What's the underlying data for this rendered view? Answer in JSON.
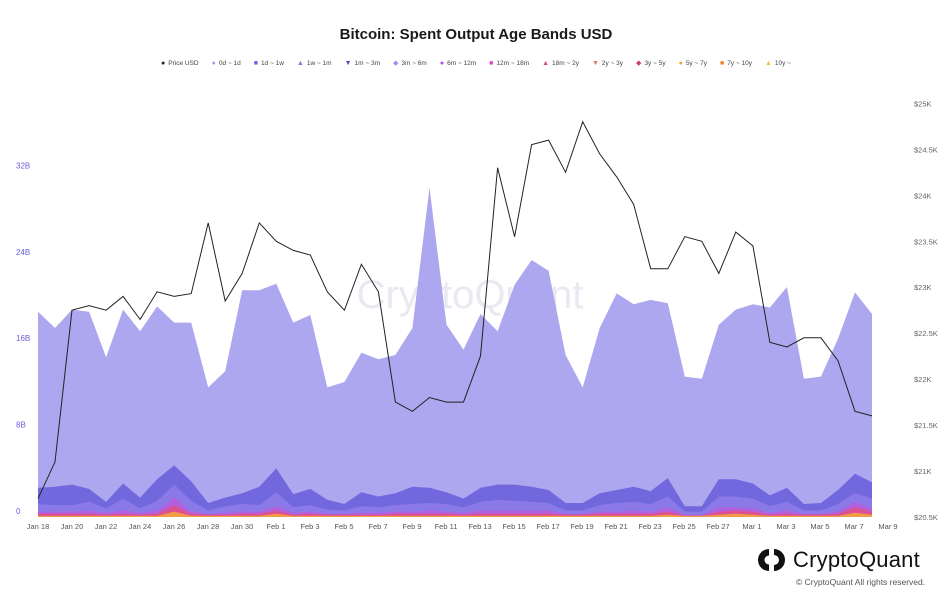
{
  "chart_data": {
    "type": "area",
    "title": "Bitcoin: Spent Output Age Bands USD",
    "legend": [
      {
        "label": "Price USD",
        "color": "#222222",
        "marker": "●"
      },
      {
        "label": "0d ~ 1d",
        "color": "#9e9ef0",
        "marker": "●"
      },
      {
        "label": "1d ~ 1w",
        "color": "#6c5ce7",
        "marker": "■"
      },
      {
        "label": "1w ~ 1m",
        "color": "#8f6fe6",
        "marker": "▲"
      },
      {
        "label": "1m ~ 3m",
        "color": "#5a47d6",
        "marker": "▼"
      },
      {
        "label": "3m ~ 6m",
        "color": "#a989f0",
        "marker": "◆"
      },
      {
        "label": "6m ~ 12m",
        "color": "#b14ae0",
        "marker": "●"
      },
      {
        "label": "12m ~ 18m",
        "color": "#d64fc8",
        "marker": "■"
      },
      {
        "label": "18m ~ 2y",
        "color": "#e0467a",
        "marker": "▲"
      },
      {
        "label": "2y ~ 3y",
        "color": "#f06a5a",
        "marker": "▼"
      },
      {
        "label": "3y ~ 5y",
        "color": "#c7407a",
        "marker": "◆"
      },
      {
        "label": "5y ~ 7y",
        "color": "#f4a340",
        "marker": "●"
      },
      {
        "label": "7y ~ 10y",
        "color": "#f08030",
        "marker": "■"
      },
      {
        "label": "10y ~",
        "color": "#f5c040",
        "marker": "▲"
      }
    ],
    "x_labels": [
      "Jan 18",
      "Jan 20",
      "Jan 22",
      "Jan 24",
      "Jan 26",
      "Jan 28",
      "Jan 30",
      "Feb 1",
      "Feb 3",
      "Feb 5",
      "Feb 7",
      "Feb 9",
      "Feb 11",
      "Feb 13",
      "Feb 15",
      "Feb 17",
      "Feb 19",
      "Feb 21",
      "Feb 23",
      "Feb 25",
      "Feb 27",
      "Mar 1",
      "Mar 3",
      "Mar 5",
      "Mar 7",
      "Mar 9"
    ],
    "y_left_ticks": [
      {
        "label": "0",
        "value": 0
      },
      {
        "label": "8B",
        "value": 8
      },
      {
        "label": "16B",
        "value": 16
      },
      {
        "label": "24B",
        "value": 24
      },
      {
        "label": "32B",
        "value": 32
      }
    ],
    "y_right_ticks": [
      {
        "label": "$20.5K",
        "value": 20.5
      },
      {
        "label": "$21K",
        "value": 21
      },
      {
        "label": "$21.5K",
        "value": 21.5
      },
      {
        "label": "$22K",
        "value": 22
      },
      {
        "label": "$22.5K",
        "value": 22.5
      },
      {
        "label": "$23K",
        "value": 23
      },
      {
        "label": "$23.5K",
        "value": 23.5
      },
      {
        "label": "$24K",
        "value": 24
      },
      {
        "label": "$24.5K",
        "value": 24.5
      },
      {
        "label": "$25K",
        "value": 25
      }
    ],
    "y_left_range": [
      0,
      40
    ],
    "y_right_range": [
      20.5,
      25.2
    ],
    "watermark": "CryptoQuant",
    "series": [
      {
        "name": "0d ~ 1d",
        "unit": "B USD",
        "color": "#a5a0ee",
        "values": [
          19,
          17.5,
          19.2,
          19,
          14.8,
          19.2,
          17.2,
          19.5,
          18,
          18,
          12,
          13.5,
          21,
          21,
          21.6,
          18,
          18.7,
          12,
          12.5,
          15.2,
          14.6,
          15,
          17.5,
          30.5,
          17.8,
          15.5,
          18.8,
          17.2,
          21.5,
          23.8,
          22.8,
          15,
          12,
          17.5,
          20.7,
          19.7,
          20.1,
          19.8,
          13,
          12.8,
          17.8,
          19.2,
          19.7,
          19.4,
          21.3,
          12.8,
          13,
          16.5,
          20.8,
          18.8
        ]
      },
      {
        "name": "1d ~ 1w",
        "unit": "B USD",
        "color": "#6c63dc",
        "values": [
          2.7,
          2.8,
          3,
          2.6,
          1.4,
          3.1,
          1.8,
          3.5,
          4.8,
          3.3,
          1.3,
          1.8,
          2.2,
          2.8,
          4.5,
          2.1,
          2.6,
          1.6,
          1.2,
          2.3,
          1.9,
          2.2,
          2.8,
          2.7,
          2.3,
          1.7,
          2.7,
          3,
          3,
          2.8,
          2.5,
          1.3,
          1.3,
          2.2,
          2.5,
          2.8,
          2.4,
          3.6,
          1,
          1,
          3.5,
          3.5,
          3.1,
          2,
          2.7,
          1.2,
          1.3,
          2.5,
          4,
          3.2
        ]
      },
      {
        "name": "1w ~ 1m",
        "unit": "B USD",
        "color": "#8e7be8",
        "values": [
          1.2,
          1.1,
          1.1,
          1.4,
          0.8,
          1.7,
          0.8,
          1.5,
          3,
          1.5,
          0.6,
          1,
          1.2,
          1.1,
          2.3,
          0.9,
          1.1,
          0.7,
          0.6,
          1,
          0.9,
          1.1,
          1.2,
          1.3,
          1.2,
          0.9,
          1.4,
          1.6,
          1.5,
          1.4,
          1.3,
          0.6,
          0.6,
          1.1,
          1.3,
          1.4,
          1.2,
          1.9,
          0.5,
          0.5,
          1.9,
          1.9,
          1.7,
          1,
          1.4,
          0.6,
          0.6,
          1.2,
          2.2,
          1.7
        ]
      },
      {
        "name": "1m ~ 3m",
        "unit": "B USD",
        "color": "#b560dc",
        "values": [
          0.5,
          0.5,
          0.5,
          0.6,
          0.4,
          0.6,
          0.4,
          0.6,
          1.8,
          0.5,
          0.3,
          0.4,
          0.5,
          0.5,
          1,
          0.4,
          0.5,
          0.3,
          0.3,
          0.4,
          0.4,
          0.5,
          0.5,
          0.6,
          0.5,
          0.4,
          0.6,
          0.6,
          0.6,
          0.6,
          0.6,
          0.3,
          0.3,
          0.5,
          0.5,
          0.6,
          0.5,
          0.9,
          0.2,
          0.2,
          0.9,
          0.9,
          0.8,
          0.4,
          0.6,
          0.3,
          0.3,
          0.5,
          1.4,
          0.8
        ]
      },
      {
        "name": "6m ~ 12m",
        "unit": "B USD",
        "color": "#e0508a",
        "values": [
          0.3,
          0.3,
          0.3,
          0.3,
          0.2,
          0.3,
          0.2,
          0.3,
          1.1,
          0.3,
          0.2,
          0.2,
          0.3,
          0.3,
          0.6,
          0.2,
          0.3,
          0.2,
          0.2,
          0.2,
          0.2,
          0.3,
          0.3,
          0.3,
          0.3,
          0.2,
          0.3,
          0.3,
          0.3,
          0.3,
          0.3,
          0.2,
          0.2,
          0.3,
          0.3,
          0.3,
          0.3,
          0.5,
          0.1,
          0.1,
          0.5,
          0.6,
          0.5,
          0.2,
          0.3,
          0.2,
          0.2,
          0.3,
          0.9,
          0.5
        ]
      },
      {
        "name": "5y ~ 7y",
        "unit": "B USD",
        "color": "#f4a340",
        "values": [
          0.1,
          0.1,
          0.1,
          0.1,
          0.1,
          0.1,
          0.1,
          0.1,
          0.5,
          0.1,
          0.1,
          0.1,
          0.1,
          0.1,
          0.3,
          0.1,
          0.1,
          0.1,
          0.1,
          0.1,
          0.1,
          0.1,
          0.1,
          0.1,
          0.1,
          0.1,
          0.1,
          0.1,
          0.1,
          0.1,
          0.1,
          0.1,
          0.1,
          0.1,
          0.1,
          0.1,
          0.1,
          0.2,
          0.1,
          0.1,
          0.2,
          0.3,
          0.2,
          0.1,
          0.1,
          0.1,
          0.1,
          0.1,
          0.4,
          0.2
        ]
      },
      {
        "name": "Price USD",
        "unit": "K USD",
        "color": "#222222",
        "axis": "right",
        "values": [
          20.7,
          21.1,
          22.75,
          22.8,
          22.75,
          22.9,
          22.65,
          22.95,
          22.9,
          22.93,
          23.7,
          22.85,
          23.15,
          23.7,
          23.5,
          23.4,
          23.35,
          22.95,
          22.75,
          23.25,
          22.95,
          21.75,
          21.65,
          21.8,
          21.75,
          21.75,
          22.25,
          24.3,
          23.55,
          24.55,
          24.6,
          24.25,
          24.8,
          24.45,
          24.2,
          23.9,
          23.2,
          23.2,
          23.55,
          23.5,
          23.15,
          23.6,
          23.45,
          22.4,
          22.35,
          22.45,
          22.45,
          22.2,
          21.65,
          21.6
        ]
      }
    ]
  },
  "footer": {
    "brand": "CryptoQuant",
    "copyright": "© CryptoQuant All rights reserved."
  }
}
